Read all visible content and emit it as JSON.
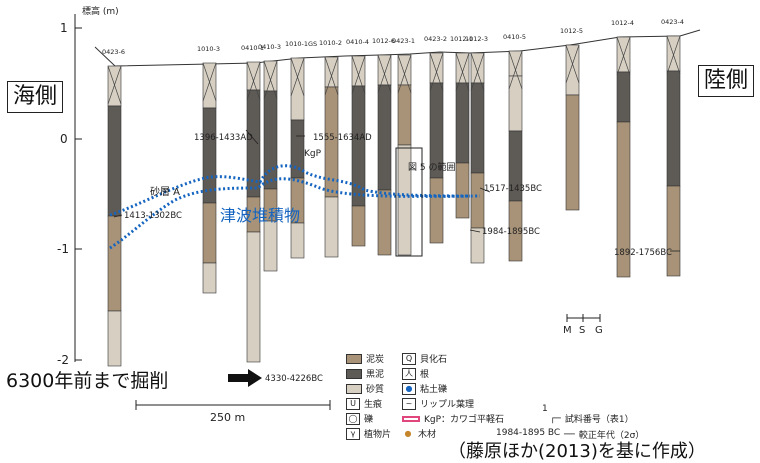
{
  "side_labels": {
    "sea": "海側",
    "land": "陸側"
  },
  "axis": {
    "title": "標高 (m)",
    "ticks": [
      "1",
      "0",
      "-1",
      "-2"
    ]
  },
  "columns": [
    {
      "id": "0423-6",
      "sample": ""
    },
    {
      "id": "1010-3",
      "sample": ""
    },
    {
      "id": "0410-1",
      "sample": ""
    },
    {
      "id": "0410-3",
      "sample": ""
    },
    {
      "id": "1010-1GS",
      "sample": ""
    },
    {
      "id": "1010-2",
      "sample": ""
    },
    {
      "id": "0410-4",
      "sample": ""
    },
    {
      "id": "1012-6",
      "sample": ""
    },
    {
      "id": "0423-1",
      "sample": ""
    },
    {
      "id": "0423-2",
      "sample": ""
    },
    {
      "id": "1012-1",
      "sample": ""
    },
    {
      "id": "1012-3",
      "sample": ""
    },
    {
      "id": "0410-5",
      "sample": ""
    },
    {
      "id": "1012-5",
      "sample": ""
    },
    {
      "id": "1012-4",
      "sample": ""
    },
    {
      "id": "0423-4",
      "sample": ""
    }
  ],
  "dates": [
    "1396-1433AD",
    "1555-1634AD",
    "1517-1435BC",
    "1413-1302BC",
    "1984-1895BC",
    "1892-1756BC",
    "4330-4226BC"
  ],
  "annotations": {
    "kgp": "KgP",
    "sand_layer": "砂層 A",
    "fig5_range": "図 5 の範囲",
    "tsunami": "津波堆積物",
    "excavation": "6300年前まで掘削",
    "grain": [
      "M",
      "S",
      "G"
    ],
    "scale": "250 m",
    "source": "（藤原ほか(2013)を基に作成）"
  },
  "legend": [
    {
      "label": "泥炭",
      "color": "#a89378"
    },
    {
      "label": "黒泥",
      "color": "#5e5a56"
    },
    {
      "label": "砂質",
      "color": "#d6cfc2"
    },
    {
      "label": "生痕",
      "color": "#ffffff"
    },
    {
      "label": "礫",
      "color": "#ffffff"
    },
    {
      "label": "植物片",
      "color": "#ffffff"
    },
    {
      "label": "貝化石",
      "color": "#ffffff"
    },
    {
      "label": "根",
      "color": "#ffffff"
    },
    {
      "label": "粘土礫",
      "color": "#ffffff"
    },
    {
      "label": "リップル葉理",
      "color": "#ffffff"
    },
    {
      "label": "KgP：カワゴ平軽石",
      "color": "#e0457b"
    },
    {
      "label": "木材",
      "color": "#c5862b"
    }
  ],
  "legend_extra": {
    "sample_no": "試料番号（表1）",
    "calib_age": "較正年代（2σ）",
    "sample_mark": "1",
    "date_example": "1984-1895 BC"
  },
  "colors": {
    "tsunami": "#1565c0",
    "peat": "#a89378",
    "mud": "#5e5a56",
    "sand": "#d6cfc2"
  }
}
